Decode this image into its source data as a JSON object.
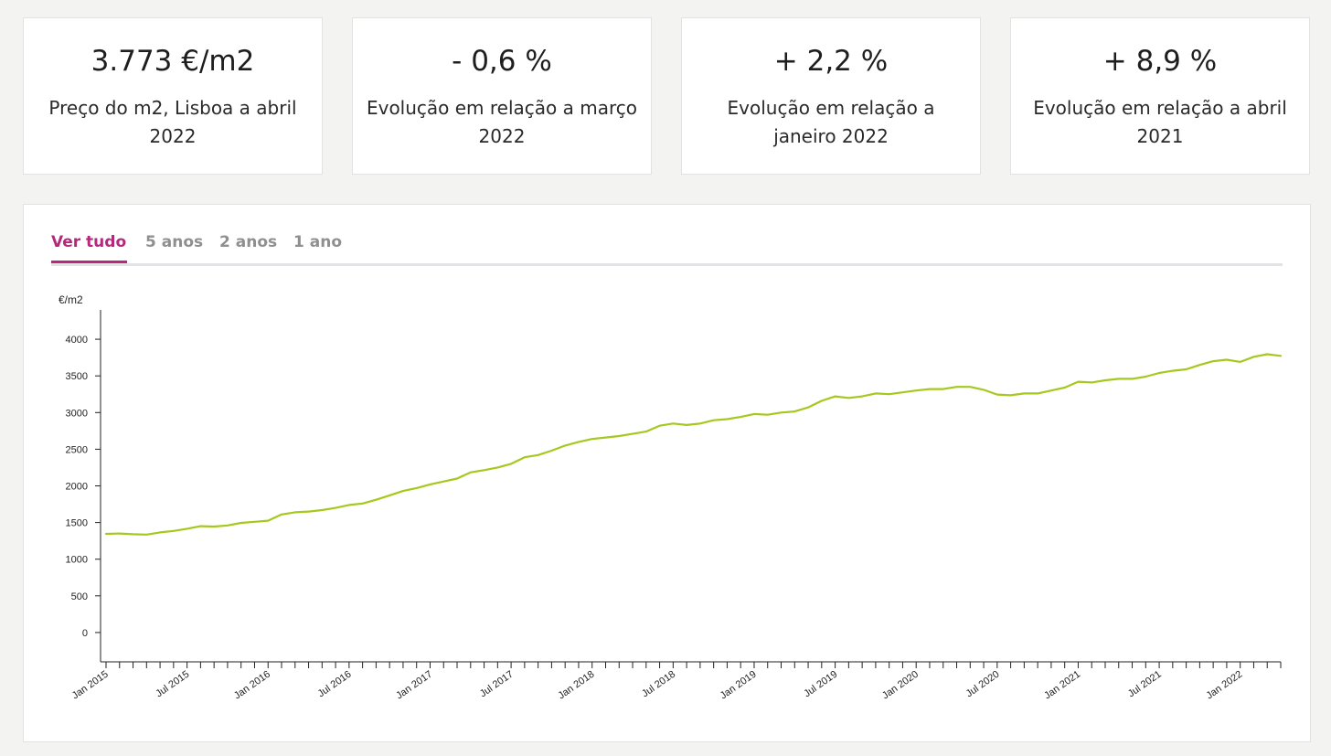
{
  "stats": [
    {
      "value": "3.773 €/m2",
      "label": "Preço do m2, Lisboa a abril 2022"
    },
    {
      "value": "- 0,6 %",
      "label": "Evolução em relação a março 2022"
    },
    {
      "value": "+ 2,2 %",
      "label": "Evolução em relação a janeiro 2022"
    },
    {
      "value": "+ 8,9 %",
      "label": "Evolução em relação a abril 2021"
    }
  ],
  "tabs": {
    "all": "Ver tudo",
    "five_years": "5 anos",
    "two_years": "2 anos",
    "one_year": "1 ano"
  },
  "colors": {
    "accent": "#b5287c",
    "line": "#a6c81e",
    "inactive_tab": "#8f8f8f"
  },
  "chart_data": {
    "type": "line",
    "ylabel": "€/m2",
    "ylim": [
      -400,
      4400
    ],
    "yticks": [
      0,
      500,
      1000,
      1500,
      2000,
      2500,
      3000,
      3500,
      4000
    ],
    "xticks": [
      "Jan 2015",
      "Jul 2015",
      "Jan 2016",
      "Jul 2016",
      "Jan 2017",
      "Jul 2017",
      "Jan 2018",
      "Jul 2018",
      "Jan 2019",
      "Jul 2019",
      "Jan 2020",
      "Jul 2020",
      "Jan 2021",
      "Jul 2021",
      "Jan 2022"
    ],
    "x_start": "Jan 2015",
    "x_end": "Apr 2022",
    "series": [
      {
        "values": [
          1345,
          1350,
          1340,
          1335,
          1365,
          1385,
          1415,
          1450,
          1445,
          1460,
          1495,
          1510,
          1525,
          1610,
          1640,
          1650,
          1670,
          1700,
          1740,
          1760,
          1810,
          1870,
          1930,
          1970,
          2020,
          2060,
          2100,
          2185,
          2215,
          2250,
          2300,
          2390,
          2420,
          2480,
          2550,
          2600,
          2640,
          2660,
          2680,
          2710,
          2740,
          2820,
          2850,
          2830,
          2850,
          2895,
          2910,
          2940,
          2980,
          2970,
          3000,
          3015,
          3070,
          3160,
          3220,
          3200,
          3220,
          3260,
          3250,
          3275,
          3300,
          3320,
          3320,
          3350,
          3350,
          3310,
          3245,
          3235,
          3260,
          3260,
          3300,
          3340,
          3420,
          3410,
          3440,
          3460,
          3460,
          3490,
          3540,
          3570,
          3590,
          3650,
          3700,
          3720,
          3690,
          3760,
          3795,
          3773
        ]
      }
    ]
  }
}
